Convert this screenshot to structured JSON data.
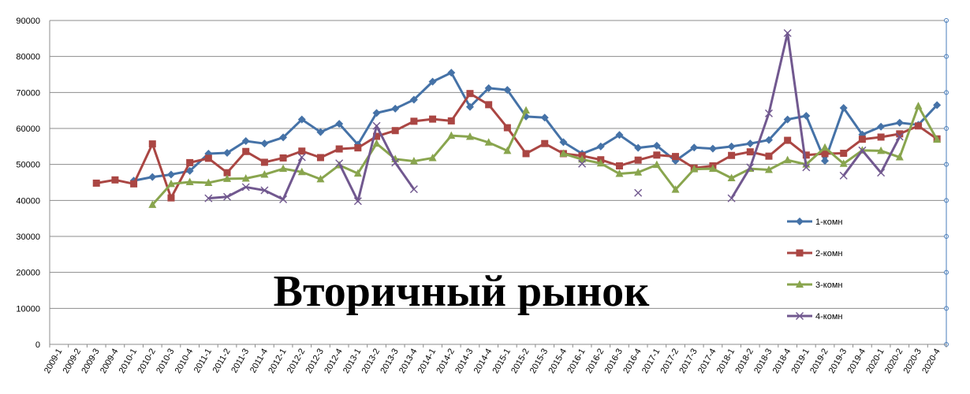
{
  "chart_data": {
    "type": "line",
    "title": "Вторичный рынок",
    "xlabel": "",
    "ylabel": "",
    "ylim": [
      0,
      90000
    ],
    "yticks": [
      0,
      10000,
      20000,
      30000,
      40000,
      50000,
      60000,
      70000,
      80000,
      90000
    ],
    "grid": true,
    "legend_position": "right",
    "categories": [
      "2009-1",
      "2009-2",
      "2009-3",
      "2009-4",
      "2010-1",
      "2010-2",
      "2010-3",
      "2010-4",
      "2011-1",
      "2011-2",
      "2011-3",
      "2011-4",
      "2012-1",
      "2012-2",
      "2012-3",
      "2012-4",
      "2013-1",
      "2013-2",
      "2013-3",
      "2013-4",
      "2014-1",
      "2014-2",
      "2014-3",
      "2014-4",
      "2015-1",
      "2015-2",
      "2015-3",
      "2015-4",
      "2016-1",
      "2016-2",
      "2016-3",
      "2016-4",
      "2017-1",
      "2017-2",
      "2017-3",
      "2017-4",
      "2018-1",
      "2018-2",
      "2018-3",
      "2018-4",
      "2019-1",
      "2019-2",
      "2019-3",
      "2019-4",
      "2020-1",
      "2020-2",
      "2020-3",
      "2020-4"
    ],
    "series": [
      {
        "name": "1-комн",
        "color": "#4572A7",
        "marker": "diamond",
        "values": [
          null,
          null,
          null,
          null,
          45500,
          46500,
          47200,
          48200,
          53000,
          53200,
          56500,
          55800,
          57500,
          62500,
          59000,
          61300,
          55500,
          64300,
          65500,
          68000,
          73000,
          75500,
          66000,
          71200,
          70700,
          63300,
          63000,
          56200,
          53000,
          55000,
          58200,
          54600,
          55200,
          51000,
          54700,
          54400,
          55000,
          55800,
          56800,
          62500,
          63500,
          51000,
          65700,
          58300,
          60500,
          61600,
          61000,
          66500
        ]
      },
      {
        "name": "2-комн",
        "color": "#AA4643",
        "marker": "square",
        "values": [
          null,
          null,
          44800,
          45700,
          44600,
          55700,
          40700,
          50500,
          51700,
          47700,
          53600,
          50600,
          51800,
          53700,
          51900,
          54300,
          54600,
          57800,
          59400,
          62000,
          62600,
          62100,
          69700,
          66600,
          60200,
          53000,
          55800,
          53000,
          52400,
          51300,
          49600,
          51200,
          52600,
          52200,
          49000,
          49600,
          52500,
          53500,
          52300,
          56700,
          52600,
          53000,
          53100,
          57000,
          57600,
          58500,
          60700,
          57100
        ]
      },
      {
        "name": "3-комн",
        "color": "#89A54E",
        "marker": "triangle",
        "values": [
          null,
          null,
          null,
          null,
          null,
          38800,
          44600,
          45100,
          44900,
          46000,
          46100,
          47200,
          48800,
          47900,
          45900,
          49800,
          47500,
          55800,
          51500,
          50900,
          51800,
          58000,
          57700,
          56100,
          53800,
          65000,
          null,
          53000,
          51400,
          50300,
          47400,
          47800,
          49900,
          43000,
          48700,
          48800,
          46200,
          48800,
          48500,
          51200,
          50000,
          54700,
          50200,
          53900,
          53800,
          52000,
          66200,
          56900
        ]
      },
      {
        "name": "4-комн",
        "color": "#71588F",
        "marker": "x",
        "values": [
          null,
          null,
          null,
          null,
          null,
          null,
          null,
          null,
          40600,
          41000,
          43700,
          42800,
          40300,
          52000,
          null,
          50300,
          39800,
          60700,
          50500,
          43100,
          null,
          null,
          null,
          null,
          null,
          null,
          null,
          null,
          50200,
          null,
          null,
          42100,
          null,
          null,
          null,
          null,
          40600,
          49200,
          64200,
          86500,
          49200,
          null,
          46900,
          53900,
          47700,
          57700,
          null,
          null
        ]
      }
    ]
  }
}
